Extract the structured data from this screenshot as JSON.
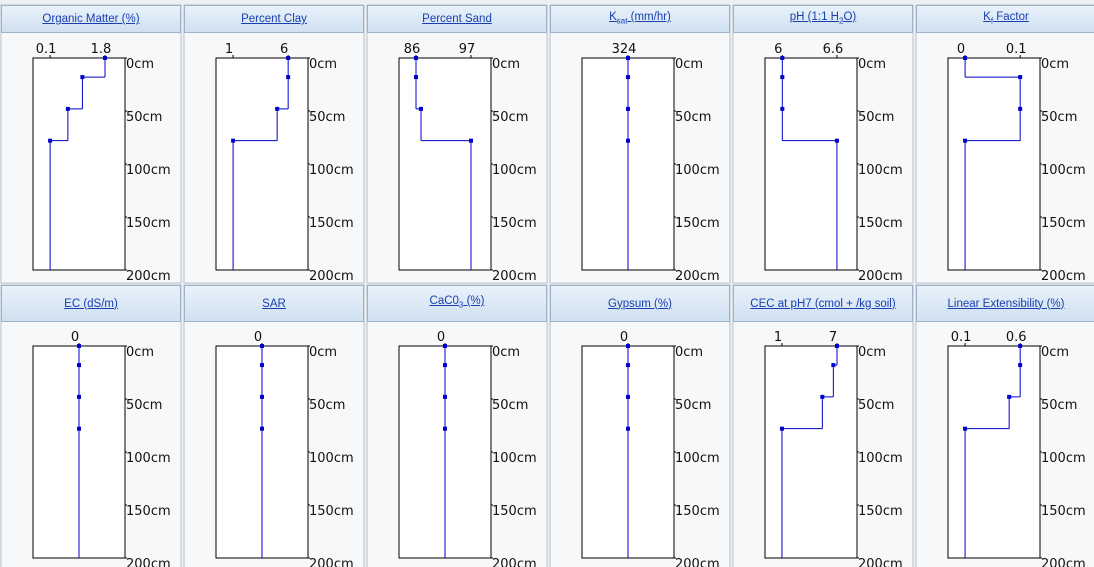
{
  "chart_data": [
    {
      "type": "step",
      "title": [
        {
          "text": "Organic Matter (%)"
        }
      ],
      "depths": [
        0,
        18,
        48,
        78
      ],
      "values": [
        1.8,
        1.1,
        0.65,
        0.1
      ],
      "xlim": [
        -0.43,
        2.42
      ],
      "xticks": [
        0.1,
        1.8
      ],
      "ylim": [
        0,
        200
      ],
      "yticks": [
        {
          "value": 0,
          "label": "0cm"
        },
        {
          "value": 50,
          "label": "50cm"
        },
        {
          "value": 100,
          "label": "100cm"
        },
        {
          "value": 150,
          "label": "150cm"
        },
        {
          "value": 200,
          "label": "200cm"
        }
      ],
      "color": "#0000cc"
    },
    {
      "type": "step",
      "title": [
        {
          "text": "Percent Clay"
        }
      ],
      "depths": [
        0,
        18,
        48,
        78
      ],
      "values": [
        6,
        6,
        5,
        1
      ],
      "xlim": [
        -0.55,
        7.8
      ],
      "xticks": [
        1,
        6
      ],
      "ylim": [
        0,
        200
      ],
      "yticks": [
        {
          "value": 0,
          "label": "0cm"
        },
        {
          "value": 50,
          "label": "50cm"
        },
        {
          "value": 100,
          "label": "100cm"
        },
        {
          "value": 150,
          "label": "150cm"
        },
        {
          "value": 200,
          "label": "200cm"
        }
      ],
      "color": "#0000cc"
    },
    {
      "type": "step",
      "title": [
        {
          "text": "Percent Sand"
        }
      ],
      "depths": [
        0,
        18,
        48,
        78
      ],
      "values": [
        86,
        86,
        87,
        97
      ],
      "xlim": [
        82.6,
        101
      ],
      "xticks": [
        86,
        97
      ],
      "ylim": [
        0,
        200
      ],
      "yticks": [
        {
          "value": 0,
          "label": "0cm"
        },
        {
          "value": 50,
          "label": "50cm"
        },
        {
          "value": 100,
          "label": "100cm"
        },
        {
          "value": 150,
          "label": "150cm"
        },
        {
          "value": 200,
          "label": "200cm"
        }
      ],
      "color": "#0000cc"
    },
    {
      "type": "step",
      "title": [
        {
          "text": "K"
        },
        {
          "text": "sat",
          "sub": true
        },
        {
          "text": " (mm/hr)"
        }
      ],
      "depths": [
        0,
        18,
        48,
        78
      ],
      "values": [
        324,
        324,
        324,
        324
      ],
      "xlim": [
        323,
        325
      ],
      "xticks": [
        324
      ],
      "ylim": [
        0,
        200
      ],
      "yticks": [
        {
          "value": 0,
          "label": "0cm"
        },
        {
          "value": 50,
          "label": "50cm"
        },
        {
          "value": 100,
          "label": "100cm"
        },
        {
          "value": 150,
          "label": "150cm"
        },
        {
          "value": 200,
          "label": "200cm"
        }
      ],
      "color": "#0000cc"
    },
    {
      "type": "step",
      "title": [
        {
          "text": "pH (1:1 H"
        },
        {
          "text": "2",
          "sub": true
        },
        {
          "text": "O)"
        }
      ],
      "depths": [
        0,
        18,
        48,
        78
      ],
      "values": [
        6,
        6,
        6,
        6.6
      ],
      "xlim": [
        5.81,
        6.82
      ],
      "xticks": [
        6,
        6.6
      ],
      "ylim": [
        0,
        200
      ],
      "yticks": [
        {
          "value": 0,
          "label": "0cm"
        },
        {
          "value": 50,
          "label": "50cm"
        },
        {
          "value": 100,
          "label": "100cm"
        },
        {
          "value": 150,
          "label": "150cm"
        },
        {
          "value": 200,
          "label": "200cm"
        }
      ],
      "color": "#0000cc"
    },
    {
      "type": "step",
      "title": [
        {
          "text": "K"
        },
        {
          "text": "f",
          "sub": true
        },
        {
          "text": " Factor"
        }
      ],
      "depths": [
        0,
        18,
        48,
        78
      ],
      "values": [
        0,
        0.1,
        0.1,
        0
      ],
      "xlim": [
        -0.031,
        0.136
      ],
      "xticks": [
        0,
        0.1
      ],
      "ylim": [
        0,
        200
      ],
      "yticks": [
        {
          "value": 0,
          "label": "0cm"
        },
        {
          "value": 50,
          "label": "50cm"
        },
        {
          "value": 100,
          "label": "100cm"
        },
        {
          "value": 150,
          "label": "150cm"
        },
        {
          "value": 200,
          "label": "200cm"
        }
      ],
      "color": "#0000cc"
    },
    {
      "type": "step",
      "title": [
        {
          "text": "EC (dS/m)"
        }
      ],
      "depths": [
        0,
        18,
        48,
        78
      ],
      "values": [
        0,
        0,
        0,
        0
      ],
      "xlim": [
        -1,
        1
      ],
      "xticks": [
        0
      ],
      "ylim": [
        0,
        200
      ],
      "yticks": [
        {
          "value": 0,
          "label": "0cm"
        },
        {
          "value": 50,
          "label": "50cm"
        },
        {
          "value": 100,
          "label": "100cm"
        },
        {
          "value": 150,
          "label": "150cm"
        },
        {
          "value": 200,
          "label": "200cm"
        }
      ],
      "color": "#0000cc"
    },
    {
      "type": "step",
      "title": [
        {
          "text": "SAR"
        }
      ],
      "depths": [
        0,
        18,
        48,
        78
      ],
      "values": [
        0,
        0,
        0,
        0
      ],
      "xlim": [
        -1,
        1
      ],
      "xticks": [
        0
      ],
      "ylim": [
        0,
        200
      ],
      "yticks": [
        {
          "value": 0,
          "label": "0cm"
        },
        {
          "value": 50,
          "label": "50cm"
        },
        {
          "value": 100,
          "label": "100cm"
        },
        {
          "value": 150,
          "label": "150cm"
        },
        {
          "value": 200,
          "label": "200cm"
        }
      ],
      "color": "#0000cc"
    },
    {
      "type": "step",
      "title": [
        {
          "text": "CaC0"
        },
        {
          "text": "3",
          "sub": true
        },
        {
          "text": " (%)"
        }
      ],
      "depths": [
        0,
        18,
        48,
        78
      ],
      "values": [
        0,
        0,
        0,
        0
      ],
      "xlim": [
        -1,
        1
      ],
      "xticks": [
        0
      ],
      "ylim": [
        0,
        200
      ],
      "yticks": [
        {
          "value": 0,
          "label": "0cm"
        },
        {
          "value": 50,
          "label": "50cm"
        },
        {
          "value": 100,
          "label": "100cm"
        },
        {
          "value": 150,
          "label": "150cm"
        },
        {
          "value": 200,
          "label": "200cm"
        }
      ],
      "color": "#0000cc"
    },
    {
      "type": "step",
      "title": [
        {
          "text": "Gypsum (%)"
        }
      ],
      "depths": [
        0,
        18,
        48,
        78
      ],
      "values": [
        0,
        0,
        0,
        0
      ],
      "xlim": [
        -1,
        1
      ],
      "xticks": [
        0
      ],
      "ylim": [
        0,
        200
      ],
      "yticks": [
        {
          "value": 0,
          "label": "0cm"
        },
        {
          "value": 50,
          "label": "50cm"
        },
        {
          "value": 100,
          "label": "100cm"
        },
        {
          "value": 150,
          "label": "150cm"
        },
        {
          "value": 200,
          "label": "200cm"
        }
      ],
      "color": "#0000cc"
    },
    {
      "type": "step",
      "title": [
        {
          "text": "CEC at pH7 (cmol + /kg soil)"
        }
      ],
      "depths": [
        0,
        18,
        48,
        78
      ],
      "values": [
        7,
        6.6,
        5.4,
        1
      ],
      "xlim": [
        -0.85,
        9.18
      ],
      "xticks": [
        1,
        7
      ],
      "ylim": [
        0,
        200
      ],
      "yticks": [
        {
          "value": 0,
          "label": "0cm"
        },
        {
          "value": 50,
          "label": "50cm"
        },
        {
          "value": 100,
          "label": "100cm"
        },
        {
          "value": 150,
          "label": "150cm"
        },
        {
          "value": 200,
          "label": "200cm"
        }
      ],
      "color": "#0000cc"
    },
    {
      "type": "step",
      "title": [
        {
          "text": "Linear Extensibility (%)"
        }
      ],
      "depths": [
        0,
        18,
        48,
        78
      ],
      "values": [
        0.6,
        0.6,
        0.5,
        0.1
      ],
      "xlim": [
        -0.055,
        0.78
      ],
      "xticks": [
        0.1,
        0.6
      ],
      "ylim": [
        0,
        200
      ],
      "yticks": [
        {
          "value": 0,
          "label": "0cm"
        },
        {
          "value": 50,
          "label": "50cm"
        },
        {
          "value": 100,
          "label": "100cm"
        },
        {
          "value": 150,
          "label": "150cm"
        },
        {
          "value": 200,
          "label": "200cm"
        }
      ],
      "color": "#0000cc"
    }
  ]
}
